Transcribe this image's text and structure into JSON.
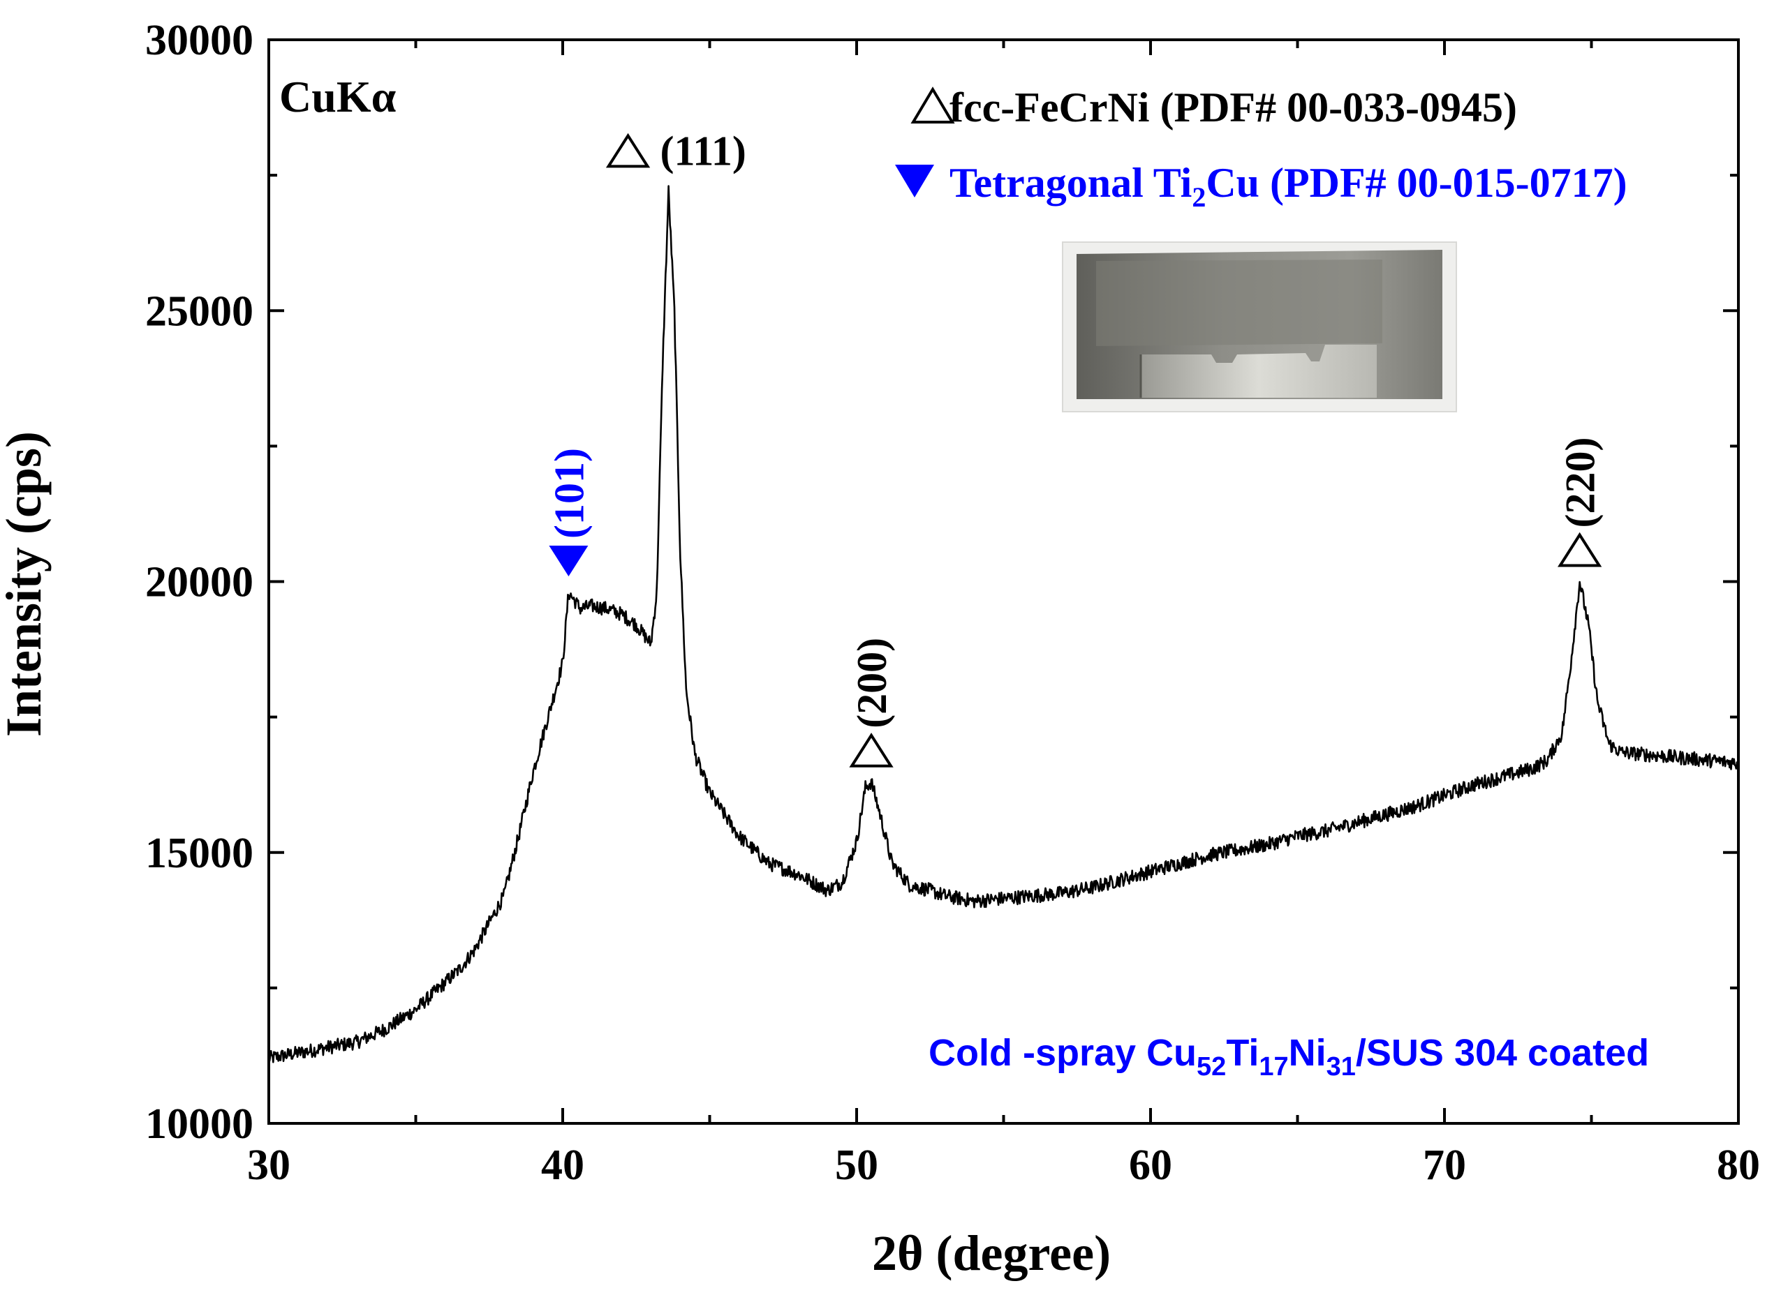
{
  "chart_data": {
    "type": "line",
    "title": "",
    "xlabel": "2θ (degree)",
    "ylabel": "Intensity (cps)",
    "xlim": [
      30,
      80
    ],
    "ylim": [
      10000,
      30000
    ],
    "x_ticks": [
      30,
      40,
      50,
      60,
      70,
      80
    ],
    "y_ticks": [
      10000,
      15000,
      20000,
      25000,
      30000
    ],
    "x_tick_labels": [
      "30",
      "40",
      "50",
      "60",
      "70",
      "80"
    ],
    "y_tick_labels": [
      "10000",
      "15000",
      "20000",
      "25000",
      "30000"
    ],
    "radiation_label": "CuKα",
    "series": [
      {
        "name": "Cold-spray Cu52Ti17Ni31/SUS 304 coated",
        "color": "#000000",
        "x": [
          30,
          31,
          32,
          33,
          34,
          35,
          35.5,
          36,
          36.5,
          37,
          37.5,
          38,
          38.5,
          39,
          39.5,
          40,
          40.2,
          40.6,
          41,
          41.5,
          42,
          42.5,
          43,
          43.2,
          43.4,
          43.6,
          43.8,
          44,
          44.2,
          44.5,
          45,
          45.5,
          46,
          47,
          48,
          49,
          49.5,
          50,
          50.3,
          50.5,
          50.8,
          51.2,
          51.8,
          52.5,
          53,
          54,
          55,
          56,
          57,
          58,
          59,
          60,
          61,
          62,
          63,
          64,
          65,
          66,
          67,
          68,
          69,
          70,
          71,
          72,
          73,
          73.5,
          74,
          74.3,
          74.6,
          74.9,
          75.2,
          75.6,
          76,
          77,
          78,
          79,
          80
        ],
        "y": [
          11200,
          11300,
          11400,
          11500,
          11750,
          12100,
          12350,
          12600,
          12850,
          13200,
          13700,
          14200,
          15300,
          16500,
          17500,
          18500,
          19800,
          19500,
          19550,
          19500,
          19400,
          19200,
          18850,
          19800,
          24000,
          27200,
          25000,
          20500,
          18000,
          16800,
          16100,
          15700,
          15300,
          14800,
          14600,
          14300,
          14450,
          15200,
          16200,
          16300,
          15700,
          14800,
          14400,
          14300,
          14200,
          14100,
          14150,
          14200,
          14250,
          14350,
          14500,
          14650,
          14800,
          14950,
          15050,
          15150,
          15300,
          15400,
          15550,
          15700,
          15850,
          16050,
          16250,
          16400,
          16550,
          16700,
          17200,
          18500,
          20000,
          19200,
          17800,
          17000,
          16850,
          16800,
          16750,
          16700,
          16650
        ]
      }
    ],
    "legend": {
      "placement": "top-right",
      "entries": [
        {
          "marker": "open-triangle-up",
          "color": "#000000",
          "label": "fcc-FeCrNi (PDF# 00-033-0945)"
        },
        {
          "marker": "filled-triangle-down",
          "color": "#0000ff",
          "label_parts": [
            "Tetragonal Ti",
            "2",
            "Cu (PDF# 00-015-0717)"
          ]
        }
      ]
    },
    "peaks": [
      {
        "x": 40.2,
        "y": 19800,
        "label": "(101)",
        "phase": "Ti2Cu",
        "marker": "filled-triangle-down",
        "color": "#0000ff"
      },
      {
        "x": 43.6,
        "y": 27200,
        "label": "(111)",
        "phase": "fcc-FeCrNi",
        "marker": "open-triangle-up",
        "color": "#000000"
      },
      {
        "x": 50.5,
        "y": 16300,
        "label": "(200)",
        "phase": "fcc-FeCrNi",
        "marker": "open-triangle-up",
        "color": "#000000"
      },
      {
        "x": 74.6,
        "y": 20000,
        "label": "(220)",
        "phase": "fcc-FeCrNi",
        "marker": "open-triangle-up",
        "color": "#000000"
      }
    ],
    "sample_label": {
      "color": "#0000ff",
      "parts": [
        "Cold -spray Cu",
        "52",
        "Ti",
        "17",
        "Ni",
        "31",
        "/SUS 304 coated"
      ]
    },
    "inset": {
      "depicts": "photo of coated sample"
    }
  }
}
